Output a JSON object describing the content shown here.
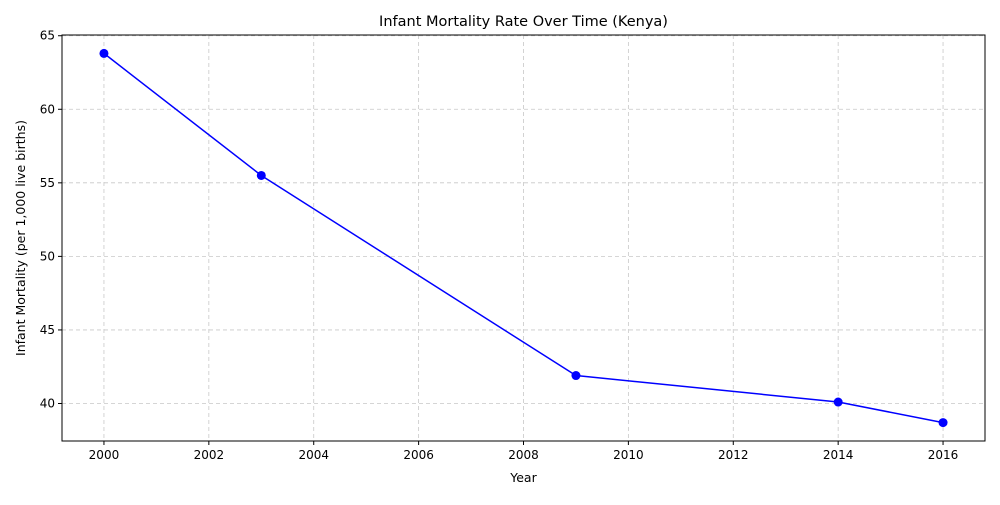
{
  "chart_data": {
    "type": "line",
    "title": "Infant Mortality Rate Over Time (Kenya)",
    "xlabel": "Year",
    "ylabel": "Infant Mortality (per 1,000 live births)",
    "xlim": [
      1999.2,
      2016.8
    ],
    "ylim": [
      37.45,
      65.05
    ],
    "x_ticks": [
      "2000",
      "2002",
      "2004",
      "2006",
      "2008",
      "2010",
      "2012",
      "2014",
      "2016"
    ],
    "y_ticks": [
      "40",
      "45",
      "50",
      "55",
      "60",
      "65"
    ],
    "grid": true,
    "series": [
      {
        "color": "#0000ff",
        "marker": "circle",
        "x": [
          2000,
          2003,
          2009,
          2014,
          2016
        ],
        "y": [
          63.8,
          55.5,
          41.9,
          40.1,
          38.7
        ]
      }
    ]
  }
}
